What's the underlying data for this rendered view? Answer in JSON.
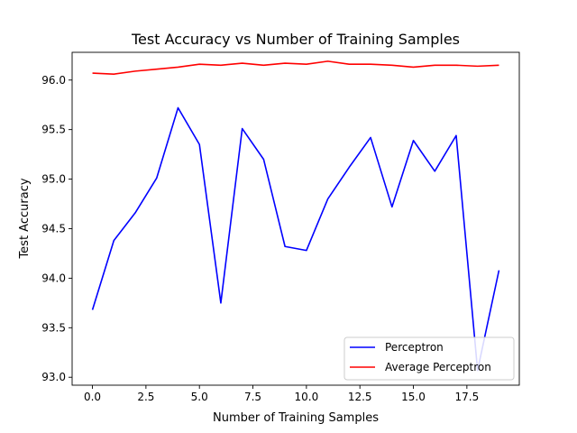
{
  "chart_data": {
    "type": "line",
    "title": "Test Accuracy vs Number of Training Samples",
    "xlabel": "Number of Training Samples",
    "ylabel": "Test Accuracy",
    "x": [
      0,
      1,
      2,
      3,
      4,
      5,
      6,
      7,
      8,
      9,
      10,
      11,
      12,
      13,
      14,
      15,
      16,
      17,
      18,
      19
    ],
    "xlim": [
      -0.95,
      19.95
    ],
    "ylim": [
      92.92,
      96.28
    ],
    "xticks": [
      0.0,
      2.5,
      5.0,
      7.5,
      10.0,
      12.5,
      15.0,
      17.5
    ],
    "xtick_labels": [
      "0.0",
      "2.5",
      "5.0",
      "7.5",
      "10.0",
      "12.5",
      "15.0",
      "17.5"
    ],
    "yticks": [
      93.0,
      93.5,
      94.0,
      94.5,
      95.0,
      95.5,
      96.0
    ],
    "ytick_labels": [
      "93.0",
      "93.5",
      "94.0",
      "94.5",
      "95.0",
      "95.5",
      "96.0"
    ],
    "grid": false,
    "legend_position": "lower-right",
    "series": [
      {
        "name": "Perceptron",
        "color": "#0000ff",
        "values": [
          93.68,
          94.38,
          94.66,
          95.01,
          95.72,
          95.35,
          93.75,
          95.51,
          95.2,
          94.32,
          94.28,
          94.8,
          95.12,
          95.42,
          94.72,
          95.39,
          95.08,
          95.44,
          93.07,
          94.08
        ]
      },
      {
        "name": "Average Perceptron",
        "color": "#ff0000",
        "values": [
          96.07,
          96.06,
          96.09,
          96.11,
          96.13,
          96.16,
          96.15,
          96.17,
          96.15,
          96.17,
          96.16,
          96.19,
          96.16,
          96.16,
          96.15,
          96.13,
          96.15,
          96.15,
          96.14,
          96.15
        ]
      }
    ]
  }
}
